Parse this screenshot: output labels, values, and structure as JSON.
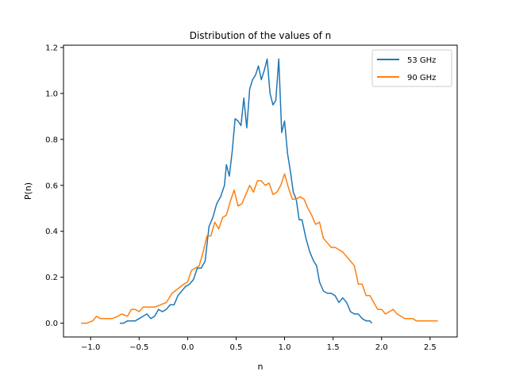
{
  "chart_data": {
    "type": "line",
    "title": "Distribution of the values of n",
    "xlabel": "n",
    "ylabel": "P(n)",
    "xlim": [
      -1.28,
      2.78
    ],
    "ylim": [
      -0.06,
      1.21
    ],
    "x_ticks": [
      -1.0,
      -0.5,
      0.0,
      0.5,
      1.0,
      1.5,
      2.0,
      2.5
    ],
    "x_tick_labels": [
      "−1.0",
      "−0.5",
      "0.0",
      "0.5",
      "1.0",
      "1.5",
      "2.0",
      "2.5"
    ],
    "y_ticks": [
      0.0,
      0.2,
      0.4,
      0.6,
      0.8,
      1.0,
      1.2
    ],
    "y_tick_labels": [
      "0.0",
      "0.2",
      "0.4",
      "0.6",
      "0.8",
      "1.0",
      "1.2"
    ],
    "grid": false,
    "legend": {
      "position": "top-right"
    },
    "series": [
      {
        "name": "53 GHz",
        "color": "#1f77b4",
        "points": [
          [
            -0.7,
            0.0
          ],
          [
            -0.66,
            0.0
          ],
          [
            -0.62,
            0.01
          ],
          [
            -0.58,
            0.01
          ],
          [
            -0.54,
            0.01
          ],
          [
            -0.5,
            0.02
          ],
          [
            -0.46,
            0.03
          ],
          [
            -0.42,
            0.04
          ],
          [
            -0.38,
            0.02
          ],
          [
            -0.34,
            0.03
          ],
          [
            -0.3,
            0.06
          ],
          [
            -0.26,
            0.05
          ],
          [
            -0.22,
            0.06
          ],
          [
            -0.18,
            0.08
          ],
          [
            -0.14,
            0.08
          ],
          [
            -0.1,
            0.12
          ],
          [
            -0.06,
            0.14
          ],
          [
            -0.02,
            0.16
          ],
          [
            0.02,
            0.17
          ],
          [
            0.06,
            0.19
          ],
          [
            0.1,
            0.24
          ],
          [
            0.14,
            0.24
          ],
          [
            0.18,
            0.27
          ],
          [
            0.22,
            0.42
          ],
          [
            0.26,
            0.46
          ],
          [
            0.3,
            0.52
          ],
          [
            0.34,
            0.55
          ],
          [
            0.38,
            0.6
          ],
          [
            0.4,
            0.69
          ],
          [
            0.43,
            0.64
          ],
          [
            0.46,
            0.75
          ],
          [
            0.49,
            0.89
          ],
          [
            0.52,
            0.88
          ],
          [
            0.55,
            0.86
          ],
          [
            0.58,
            0.98
          ],
          [
            0.61,
            0.85
          ],
          [
            0.64,
            1.02
          ],
          [
            0.67,
            1.06
          ],
          [
            0.7,
            1.08
          ],
          [
            0.73,
            1.12
          ],
          [
            0.76,
            1.06
          ],
          [
            0.79,
            1.1
          ],
          [
            0.82,
            1.15
          ],
          [
            0.85,
            1.0
          ],
          [
            0.88,
            0.95
          ],
          [
            0.91,
            0.97
          ],
          [
            0.94,
            1.15
          ],
          [
            0.97,
            0.83
          ],
          [
            1.0,
            0.88
          ],
          [
            1.03,
            0.74
          ],
          [
            1.06,
            0.66
          ],
          [
            1.09,
            0.57
          ],
          [
            1.12,
            0.54
          ],
          [
            1.15,
            0.45
          ],
          [
            1.18,
            0.45
          ],
          [
            1.22,
            0.37
          ],
          [
            1.26,
            0.31
          ],
          [
            1.3,
            0.27
          ],
          [
            1.33,
            0.25
          ],
          [
            1.36,
            0.18
          ],
          [
            1.4,
            0.14
          ],
          [
            1.44,
            0.13
          ],
          [
            1.48,
            0.13
          ],
          [
            1.52,
            0.12
          ],
          [
            1.56,
            0.09
          ],
          [
            1.6,
            0.11
          ],
          [
            1.64,
            0.09
          ],
          [
            1.68,
            0.05
          ],
          [
            1.72,
            0.04
          ],
          [
            1.76,
            0.04
          ],
          [
            1.8,
            0.02
          ],
          [
            1.84,
            0.01
          ],
          [
            1.88,
            0.01
          ],
          [
            1.9,
            0.0
          ]
        ]
      },
      {
        "name": "90 GHz",
        "color": "#ff7f0e",
        "points": [
          [
            -1.1,
            0.0
          ],
          [
            -1.04,
            0.0
          ],
          [
            -0.98,
            0.01
          ],
          [
            -0.94,
            0.03
          ],
          [
            -0.9,
            0.02
          ],
          [
            -0.84,
            0.02
          ],
          [
            -0.78,
            0.02
          ],
          [
            -0.72,
            0.03
          ],
          [
            -0.68,
            0.04
          ],
          [
            -0.62,
            0.03
          ],
          [
            -0.58,
            0.06
          ],
          [
            -0.54,
            0.06
          ],
          [
            -0.5,
            0.05
          ],
          [
            -0.46,
            0.07
          ],
          [
            -0.4,
            0.07
          ],
          [
            -0.34,
            0.07
          ],
          [
            -0.28,
            0.08
          ],
          [
            -0.22,
            0.09
          ],
          [
            -0.16,
            0.13
          ],
          [
            -0.1,
            0.15
          ],
          [
            -0.04,
            0.17
          ],
          [
            0.0,
            0.18
          ],
          [
            0.04,
            0.23
          ],
          [
            0.08,
            0.24
          ],
          [
            0.12,
            0.25
          ],
          [
            0.16,
            0.31
          ],
          [
            0.2,
            0.38
          ],
          [
            0.24,
            0.38
          ],
          [
            0.28,
            0.44
          ],
          [
            0.32,
            0.41
          ],
          [
            0.36,
            0.46
          ],
          [
            0.4,
            0.47
          ],
          [
            0.44,
            0.53
          ],
          [
            0.48,
            0.58
          ],
          [
            0.52,
            0.51
          ],
          [
            0.56,
            0.52
          ],
          [
            0.6,
            0.56
          ],
          [
            0.64,
            0.6
          ],
          [
            0.68,
            0.57
          ],
          [
            0.72,
            0.62
          ],
          [
            0.76,
            0.62
          ],
          [
            0.8,
            0.6
          ],
          [
            0.84,
            0.61
          ],
          [
            0.88,
            0.56
          ],
          [
            0.92,
            0.57
          ],
          [
            0.96,
            0.6
          ],
          [
            1.0,
            0.65
          ],
          [
            1.04,
            0.59
          ],
          [
            1.08,
            0.54
          ],
          [
            1.12,
            0.54
          ],
          [
            1.16,
            0.55
          ],
          [
            1.2,
            0.54
          ],
          [
            1.24,
            0.5
          ],
          [
            1.28,
            0.47
          ],
          [
            1.32,
            0.43
          ],
          [
            1.36,
            0.44
          ],
          [
            1.4,
            0.37
          ],
          [
            1.44,
            0.35
          ],
          [
            1.48,
            0.33
          ],
          [
            1.52,
            0.33
          ],
          [
            1.56,
            0.32
          ],
          [
            1.6,
            0.31
          ],
          [
            1.64,
            0.29
          ],
          [
            1.68,
            0.27
          ],
          [
            1.72,
            0.25
          ],
          [
            1.76,
            0.17
          ],
          [
            1.8,
            0.17
          ],
          [
            1.84,
            0.12
          ],
          [
            1.88,
            0.12
          ],
          [
            1.92,
            0.09
          ],
          [
            1.96,
            0.06
          ],
          [
            2.0,
            0.06
          ],
          [
            2.04,
            0.04
          ],
          [
            2.08,
            0.05
          ],
          [
            2.12,
            0.06
          ],
          [
            2.16,
            0.04
          ],
          [
            2.2,
            0.03
          ],
          [
            2.24,
            0.02
          ],
          [
            2.28,
            0.02
          ],
          [
            2.32,
            0.02
          ],
          [
            2.36,
            0.01
          ],
          [
            2.42,
            0.01
          ],
          [
            2.5,
            0.01
          ],
          [
            2.58,
            0.01
          ]
        ]
      }
    ]
  }
}
